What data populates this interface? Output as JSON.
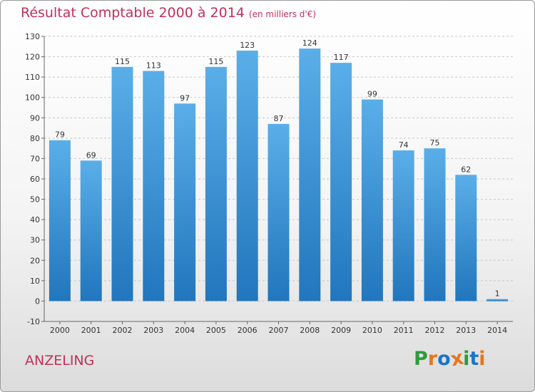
{
  "header": {
    "title": "Résultat Comptable 2000 à 2014",
    "unit": "(en milliers d'€)"
  },
  "footer": {
    "location": "ANZELING",
    "brand": [
      "P",
      "r",
      "o",
      "x",
      "i",
      "t",
      "i"
    ]
  },
  "colors": {
    "accent": "#c0305a",
    "bar_top": "#5aaee8",
    "bar_bottom": "#2176bd",
    "brand": [
      "#2f9a3e",
      "#e8761a",
      "#1e74c8",
      "#e8761a",
      "#2f9a3e",
      "#1e74c8",
      "#e8761a"
    ]
  },
  "chart_data": {
    "type": "bar",
    "title": "Résultat Comptable 2000 à 2014",
    "subtitle": "(en milliers d'€)",
    "categories": [
      "2000",
      "2001",
      "2002",
      "2003",
      "2004",
      "2005",
      "2006",
      "2007",
      "2008",
      "2009",
      "2010",
      "2011",
      "2012",
      "2013",
      "2014"
    ],
    "values": [
      79,
      69,
      115,
      113,
      97,
      115,
      123,
      87,
      124,
      117,
      99,
      74,
      75,
      62,
      1
    ],
    "ylim": [
      -10,
      130
    ],
    "yticks": [
      -10,
      0,
      10,
      20,
      30,
      40,
      50,
      60,
      70,
      80,
      90,
      100,
      110,
      120,
      130
    ],
    "grid": "horizontal-dashed"
  }
}
